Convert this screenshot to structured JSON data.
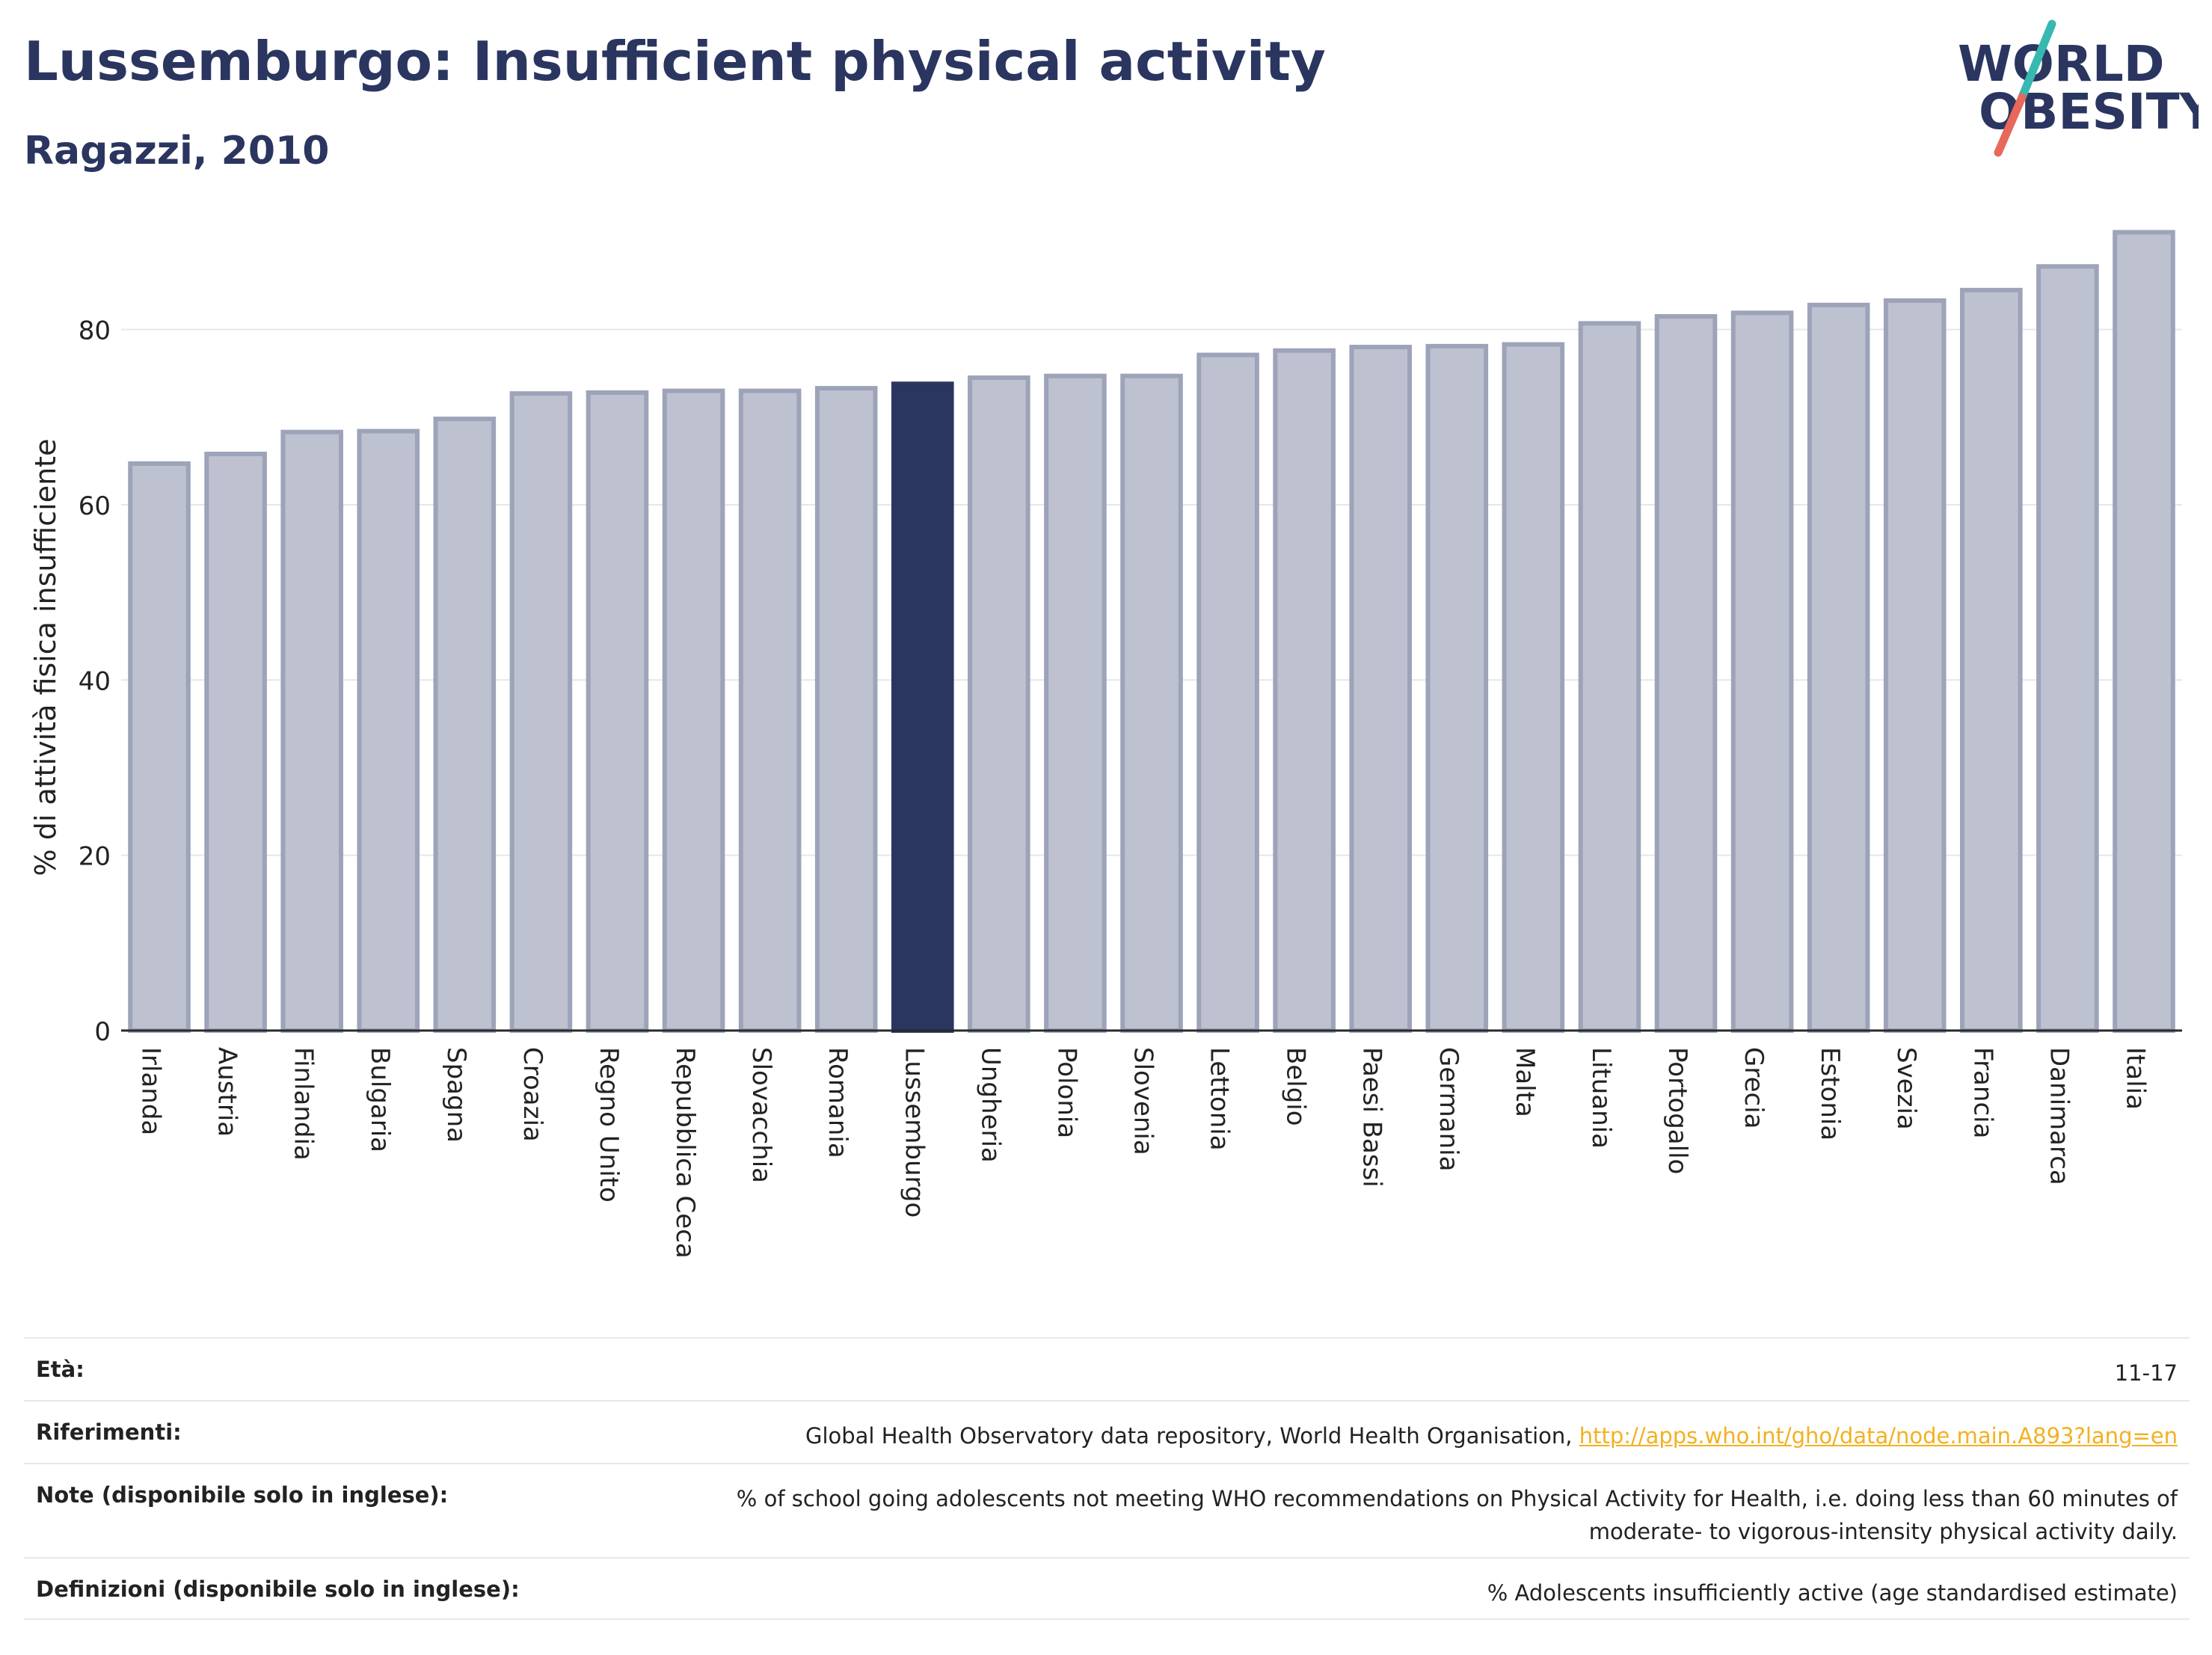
{
  "header": {
    "title": "Lussemburgo: Insufficient physical activity",
    "subtitle": "Ragazzi, 2010"
  },
  "logo": {
    "line1": "WORLD",
    "line2": "OBESITY",
    "icon": "world-obesity-logo"
  },
  "colors": {
    "bar": "#bec1cf",
    "bar_border": "#9da3b8",
    "highlight": "#2a3560",
    "logo_teal": "#37b8b0",
    "logo_red": "#e8685a",
    "link": "#f2b120"
  },
  "chart_data": {
    "type": "bar",
    "title": "Lussemburgo: Insufficient physical activity",
    "subtitle": "Ragazzi, 2010",
    "xlabel": "",
    "ylabel": "% di attività fisica insufficiente",
    "ylim": [
      0,
      92
    ],
    "yticks": [
      0,
      20,
      40,
      60,
      80
    ],
    "grid": true,
    "highlight": "Lussemburgo",
    "categories": [
      "Irlanda",
      "Austria",
      "Finlandia",
      "Bulgaria",
      "Spagna",
      "Croazia",
      "Regno Unito",
      "Repubblica Ceca",
      "Slovacchia",
      "Romania",
      "Lussemburgo",
      "Ungheria",
      "Polonia",
      "Slovenia",
      "Lettonia",
      "Belgio",
      "Paesi Bassi",
      "Germania",
      "Malta",
      "Lituania",
      "Portogallo",
      "Grecia",
      "Estonia",
      "Svezia",
      "Francia",
      "Danimarca",
      "Italia"
    ],
    "values": [
      64.7,
      65.8,
      68.3,
      68.4,
      69.8,
      72.7,
      72.8,
      73.0,
      73.0,
      73.3,
      73.8,
      74.5,
      74.7,
      74.7,
      77.1,
      77.6,
      78.0,
      78.1,
      78.3,
      80.7,
      81.5,
      81.9,
      82.8,
      83.3,
      84.5,
      87.2,
      91.1
    ]
  },
  "footer": {
    "rows": [
      {
        "label": "Età:",
        "value": "11-17"
      },
      {
        "label": "Riferimenti:",
        "value": "Global Health Observatory data repository, World Health Organisation, ",
        "link": "http://apps.who.int/gho/data/node.main.A893?lang=en"
      },
      {
        "label": "Note (disponibile solo in inglese):",
        "value_line1": "% of school going adolescents not meeting WHO recommendations on Physical Activity for Health, i.e. doing less than 60 minutes of",
        "value_line2": "moderate- to vigorous-intensity physical activity daily."
      },
      {
        "label": "Definizioni (disponibile solo in inglese):",
        "value": "% Adolescents insufficiently active (age standardised estimate)"
      }
    ]
  }
}
